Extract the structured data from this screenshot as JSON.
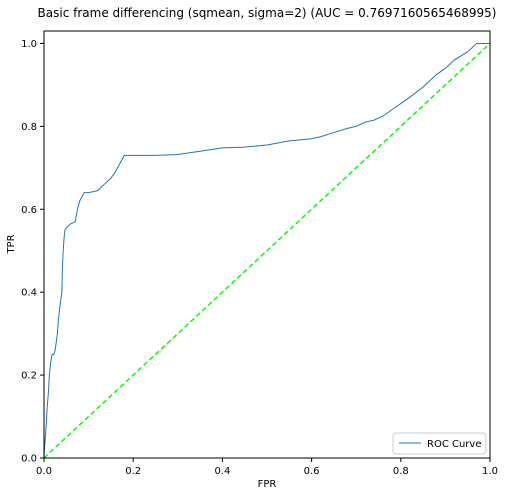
{
  "chart_data": {
    "type": "line",
    "title": "Basic frame differencing (sqmean, sigma=2) (AUC = 0.7697160565468995)",
    "xlabel": "FPR",
    "ylabel": "TPR",
    "xlim": [
      0,
      1
    ],
    "ylim": [
      0,
      1.03
    ],
    "xticks": [
      "0.0",
      "0.2",
      "0.4",
      "0.6",
      "0.8",
      "1.0"
    ],
    "yticks": [
      "0.0",
      "0.2",
      "0.4",
      "0.6",
      "0.8",
      "1.0"
    ],
    "grid": false,
    "legend": {
      "placement": "lower-right",
      "entries": [
        "ROC Curve"
      ]
    },
    "series": [
      {
        "name": "ROC Curve",
        "color": "#1f77b4",
        "style": "solid",
        "x": [
          0.0,
          0.001,
          0.003,
          0.005,
          0.007,
          0.01,
          0.012,
          0.015,
          0.018,
          0.02,
          0.022,
          0.025,
          0.03,
          0.032,
          0.035,
          0.04,
          0.041,
          0.043,
          0.045,
          0.047,
          0.05,
          0.06,
          0.07,
          0.075,
          0.08,
          0.09,
          0.1,
          0.12,
          0.13,
          0.14,
          0.15,
          0.16,
          0.17,
          0.175,
          0.18,
          0.2,
          0.25,
          0.3,
          0.35,
          0.4,
          0.45,
          0.5,
          0.55,
          0.6,
          0.62,
          0.65,
          0.68,
          0.7,
          0.72,
          0.74,
          0.75,
          0.76,
          0.78,
          0.8,
          0.82,
          0.85,
          0.88,
          0.9,
          0.92,
          0.95,
          0.97,
          1.0
        ],
        "y": [
          0.0,
          0.02,
          0.05,
          0.08,
          0.12,
          0.16,
          0.2,
          0.23,
          0.25,
          0.25,
          0.25,
          0.26,
          0.3,
          0.33,
          0.36,
          0.4,
          0.45,
          0.5,
          0.53,
          0.55,
          0.555,
          0.565,
          0.57,
          0.6,
          0.62,
          0.64,
          0.64,
          0.645,
          0.655,
          0.665,
          0.675,
          0.69,
          0.71,
          0.72,
          0.73,
          0.73,
          0.73,
          0.732,
          0.74,
          0.748,
          0.75,
          0.755,
          0.765,
          0.77,
          0.775,
          0.785,
          0.795,
          0.8,
          0.81,
          0.815,
          0.82,
          0.825,
          0.84,
          0.855,
          0.87,
          0.895,
          0.925,
          0.94,
          0.96,
          0.98,
          1.0,
          1.0
        ]
      },
      {
        "name": "",
        "color": "#00ff00",
        "style": "dashed",
        "x": [
          0,
          1
        ],
        "y": [
          0,
          1
        ]
      }
    ]
  }
}
